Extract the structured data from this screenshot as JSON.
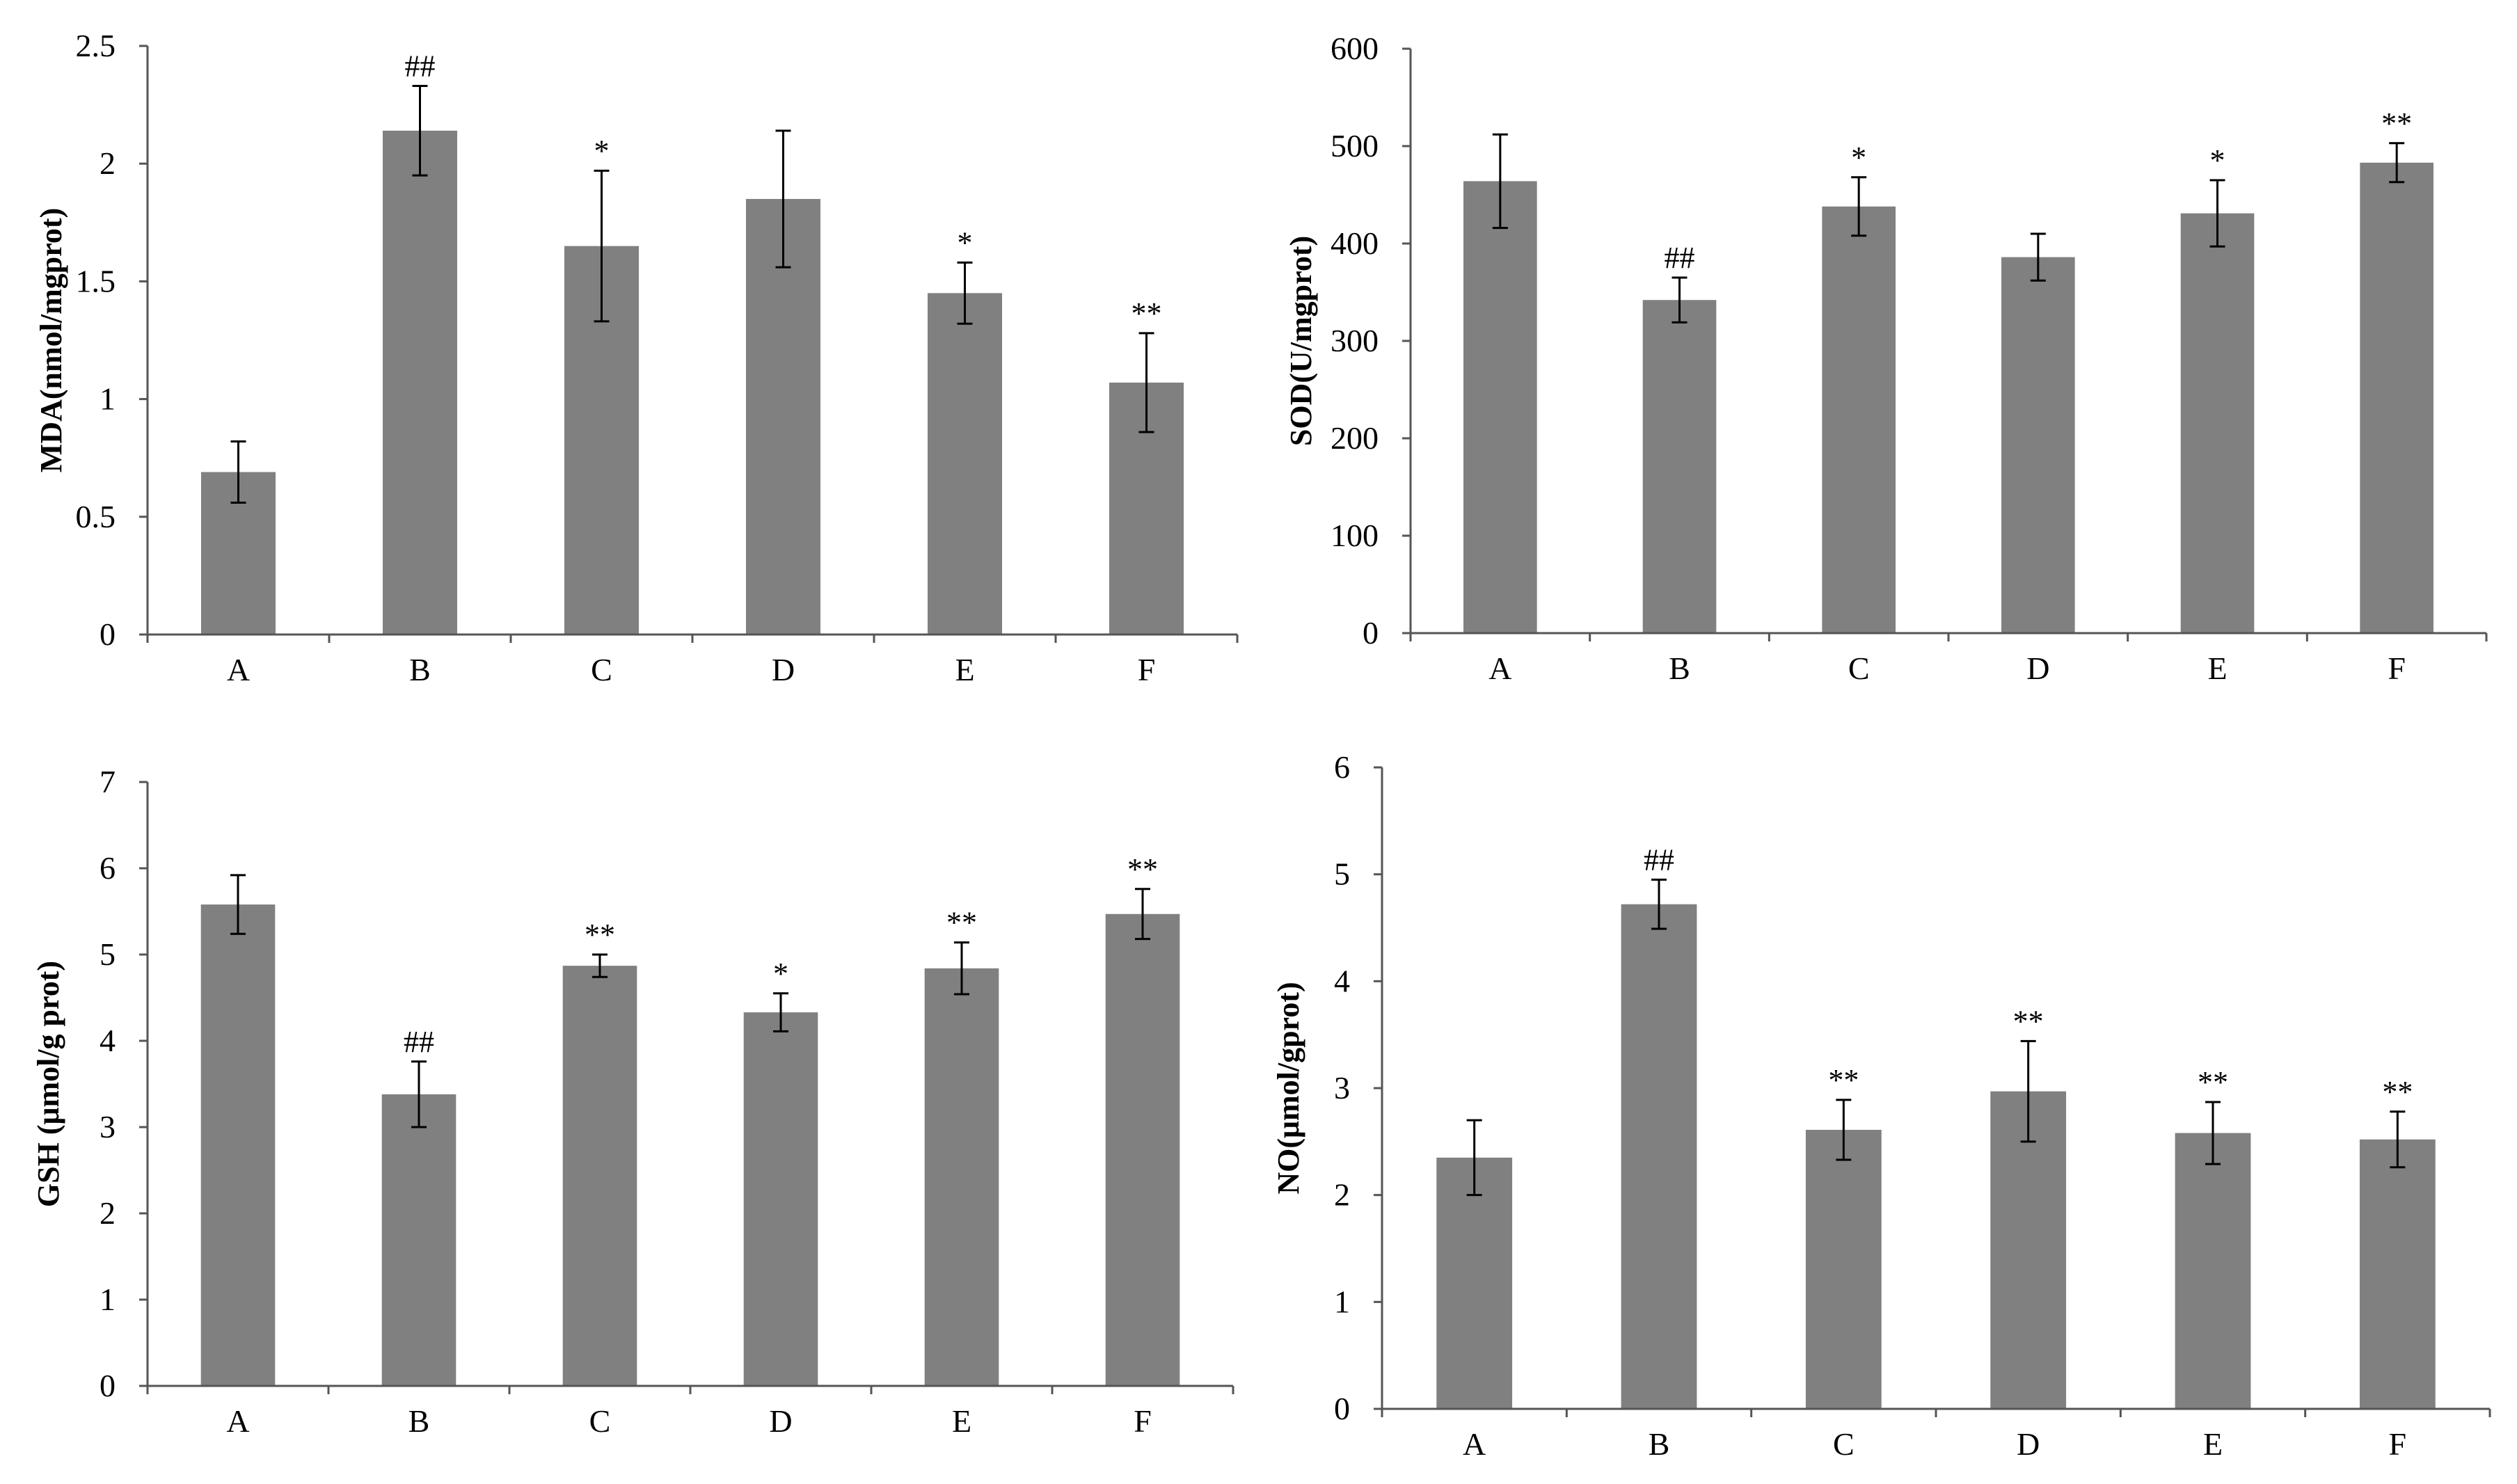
{
  "figure": {
    "bar_color": "#808080",
    "axis_color": "#555555"
  },
  "chart_data": [
    {
      "type": "bar",
      "ylabel": "MDA(nmol/mgprot)",
      "categories": [
        "A",
        "B",
        "C",
        "D",
        "E",
        "F"
      ],
      "values": [
        0.69,
        2.14,
        1.65,
        1.85,
        1.45,
        1.07
      ],
      "errors": [
        0.13,
        0.19,
        0.32,
        0.29,
        0.13,
        0.21
      ],
      "annotations": [
        "",
        "##",
        "*",
        "",
        "*",
        "**"
      ],
      "ylim": [
        0,
        2.5
      ],
      "yticks": [
        0,
        0.5,
        1,
        1.5,
        2,
        2.5
      ],
      "ytick_labels": [
        "0",
        "0.5",
        "1",
        "1.5",
        "2",
        "2.5"
      ]
    },
    {
      "type": "bar",
      "ylabel": "SOD(U/mgprot)",
      "categories": [
        "A",
        "B",
        "C",
        "D",
        "E",
        "F"
      ],
      "values": [
        464,
        342,
        438,
        386,
        431,
        483
      ],
      "errors": [
        48,
        23,
        30,
        24,
        34,
        20
      ],
      "annotations": [
        "",
        "##",
        "*",
        "",
        "*",
        "**"
      ],
      "ylim": [
        0,
        600
      ],
      "yticks": [
        0,
        100,
        200,
        300,
        400,
        500,
        600
      ],
      "ytick_labels": [
        "0",
        "100",
        "200",
        "300",
        "400",
        "500",
        "600"
      ]
    },
    {
      "type": "bar",
      "ylabel": "GSH (μmol/g prot)",
      "categories": [
        "A",
        "B",
        "C",
        "D",
        "E",
        "F"
      ],
      "values": [
        5.58,
        3.38,
        4.87,
        4.33,
        4.84,
        5.47
      ],
      "errors": [
        0.34,
        0.38,
        0.13,
        0.22,
        0.3,
        0.29
      ],
      "annotations": [
        "",
        "##",
        "**",
        "*",
        "**",
        "**"
      ],
      "ylim": [
        0,
        7
      ],
      "yticks": [
        0,
        1,
        2,
        3,
        4,
        5,
        6,
        7
      ],
      "ytick_labels": [
        "0",
        "1",
        "2",
        "3",
        "4",
        "5",
        "6",
        "7"
      ]
    },
    {
      "type": "bar",
      "ylabel": "NO(μmol/gprot)",
      "categories": [
        "A",
        "B",
        "C",
        "D",
        "E",
        "F"
      ],
      "values": [
        2.35,
        4.72,
        2.61,
        2.97,
        2.58,
        2.52
      ],
      "errors": [
        0.35,
        0.23,
        0.28,
        0.47,
        0.29,
        0.26
      ],
      "annotations": [
        "",
        "##",
        "**",
        "**",
        "**",
        "**"
      ],
      "ylim": [
        0,
        6
      ],
      "yticks": [
        0,
        1,
        2,
        3,
        4,
        5,
        6
      ],
      "ytick_labels": [
        "0",
        "1",
        "2",
        "3",
        "4",
        "5",
        "6"
      ]
    }
  ]
}
